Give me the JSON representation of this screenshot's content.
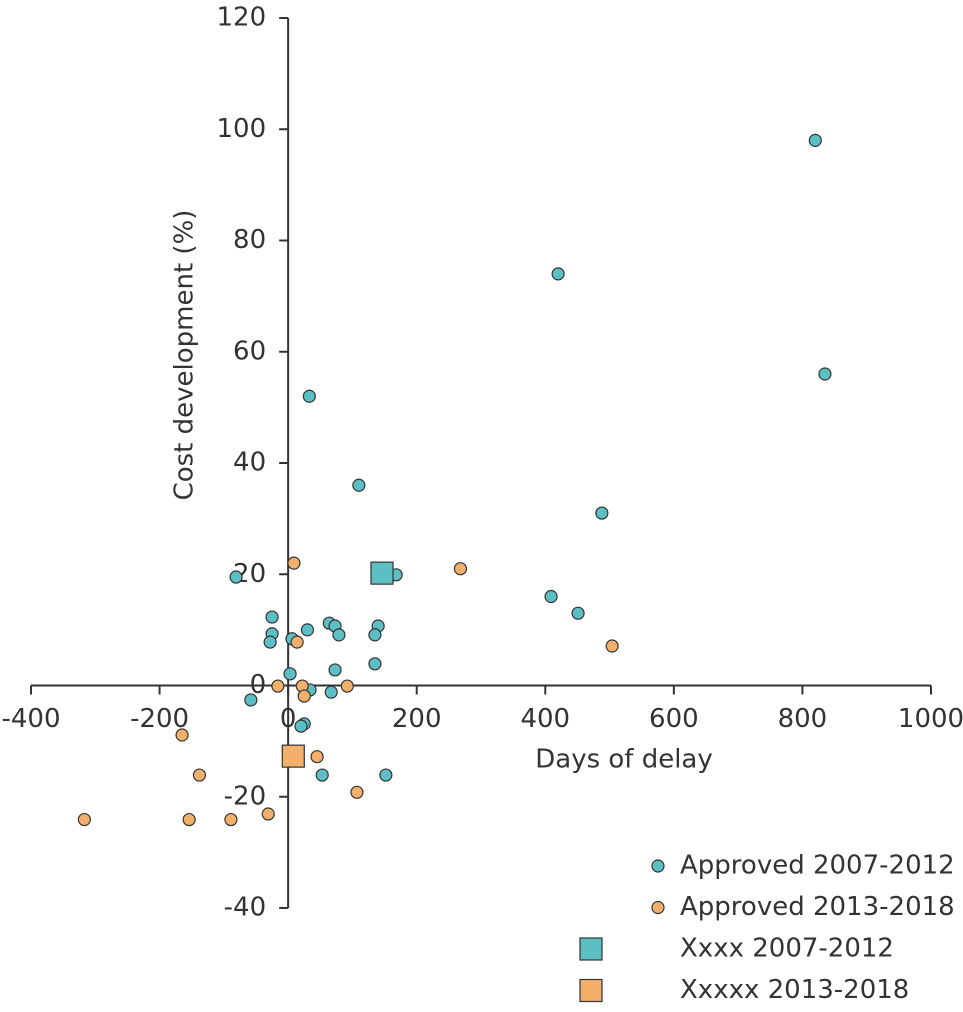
{
  "chart_data": {
    "type": "scatter",
    "xlabel": "Days of delay",
    "ylabel": "Cost development (%)",
    "xlim": [
      -400,
      1000
    ],
    "ylim": [
      -40,
      120
    ],
    "xticks": [
      -400,
      -200,
      0,
      200,
      400,
      600,
      800,
      1000
    ],
    "yticks": [
      -40,
      -20,
      0,
      20,
      40,
      60,
      80,
      100,
      120
    ],
    "series": [
      {
        "name": "Approved 2007-2012",
        "color": "#5bbfc4",
        "marker": "circle",
        "x": [
          820,
          420,
          835,
          33,
          110,
          488,
          -81,
          168,
          409,
          451,
          -25,
          64,
          73,
          140,
          30,
          -25,
          79,
          135,
          6,
          -28,
          73,
          3,
          135,
          67,
          34,
          -58,
          25,
          20,
          53,
          152
        ],
        "values": [
          98,
          74,
          56,
          52,
          36,
          31,
          19.5,
          19.9,
          16,
          13,
          12.3,
          11.2,
          10.7,
          10.7,
          10,
          9.3,
          9.1,
          9.1,
          8.4,
          7.8,
          2.8,
          2.1,
          3.9,
          -1.2,
          -0.8,
          -2.6,
          -6.9,
          -7.3,
          -16.1,
          -16.1
        ]
      },
      {
        "name": "Approved 2013-2018",
        "color": "#f2b06a",
        "marker": "circle",
        "x": [
          9,
          268,
          14,
          504,
          -16,
          22,
          92,
          25,
          -165,
          45,
          -138,
          107,
          -31,
          -317,
          -154,
          -89
        ],
        "values": [
          22,
          21,
          7.8,
          7.1,
          -0.1,
          -0.1,
          -0.1,
          -1.9,
          -8.9,
          -12.8,
          -16.1,
          -19.2,
          -23.1,
          -24.1,
          -24.1,
          -24.1
        ]
      },
      {
        "name": "Xxxx 2007-2012",
        "color": "#5bbfc4",
        "marker": "square",
        "x": [
          146
        ],
        "values": [
          20.2
        ]
      },
      {
        "name": "Xxxxx 2013-2018",
        "color": "#f2b06a",
        "marker": "square",
        "x": [
          8
        ],
        "values": [
          -12.7
        ]
      }
    ]
  }
}
